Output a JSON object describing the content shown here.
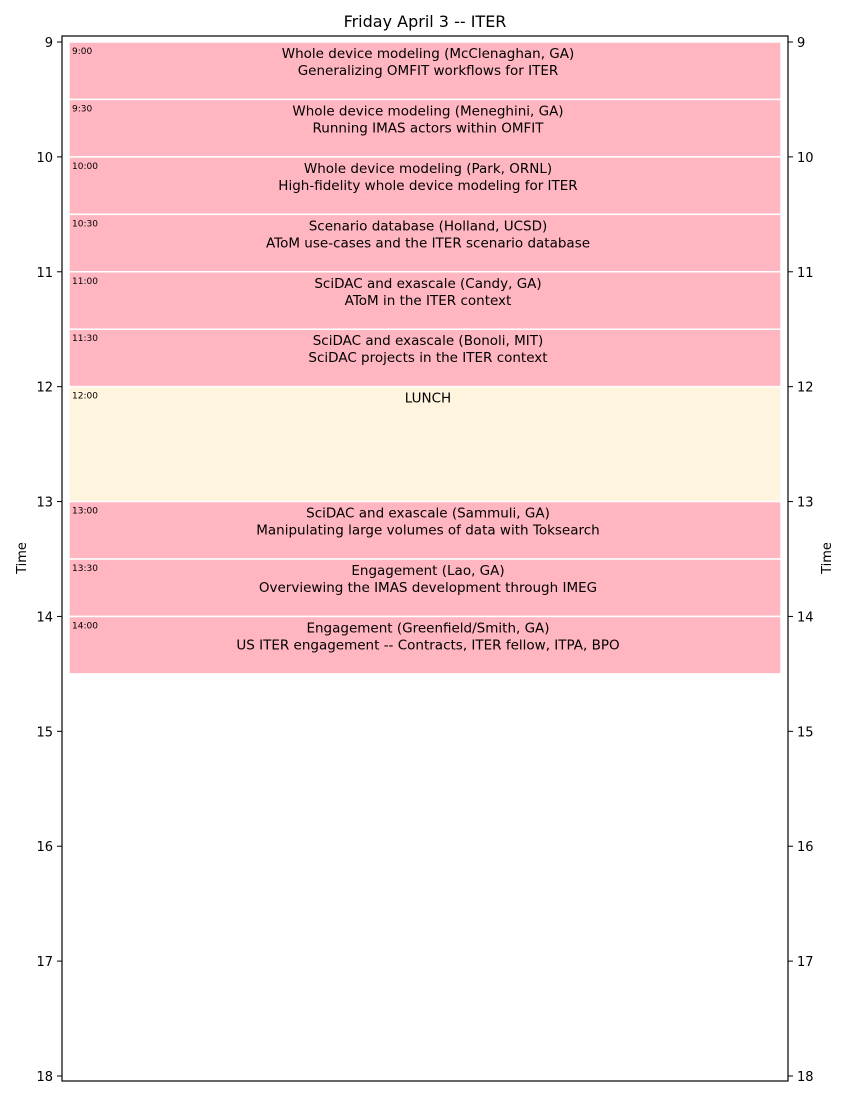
{
  "chart_data": {
    "type": "table",
    "title": "Friday April 3 -- ITER",
    "ylabel": "Time",
    "ylim": [
      9,
      18
    ],
    "yticks": [
      "9",
      "10",
      "11",
      "12",
      "13",
      "14",
      "15",
      "16",
      "17",
      "18"
    ],
    "colors": {
      "talk": "#ffb6c1",
      "break": "#fff5de",
      "frame": "#000000"
    },
    "events": [
      {
        "time_label": "9:00",
        "start": 9.0,
        "end": 9.5,
        "kind": "talk",
        "line1": "Whole device modeling (McClenaghan, GA)",
        "line2": "Generalizing OMFIT workflows for ITER"
      },
      {
        "time_label": "9:30",
        "start": 9.5,
        "end": 10.0,
        "kind": "talk",
        "line1": "Whole device modeling (Meneghini, GA)",
        "line2": "Running IMAS actors within OMFIT"
      },
      {
        "time_label": "10:00",
        "start": 10.0,
        "end": 10.5,
        "kind": "talk",
        "line1": "Whole device modeling (Park, ORNL)",
        "line2": "High-fidelity whole device modeling for ITER"
      },
      {
        "time_label": "10:30",
        "start": 10.5,
        "end": 11.0,
        "kind": "talk",
        "line1": "Scenario database (Holland, UCSD)",
        "line2": "AToM use-cases and the ITER scenario database"
      },
      {
        "time_label": "11:00",
        "start": 11.0,
        "end": 11.5,
        "kind": "talk",
        "line1": "SciDAC and exascale (Candy, GA)",
        "line2": "AToM in the ITER context"
      },
      {
        "time_label": "11:30",
        "start": 11.5,
        "end": 12.0,
        "kind": "talk",
        "line1": "SciDAC and exascale (Bonoli, MIT)",
        "line2": "SciDAC projects in the ITER context"
      },
      {
        "time_label": "12:00",
        "start": 12.0,
        "end": 13.0,
        "kind": "break",
        "line1": "LUNCH",
        "line2": ""
      },
      {
        "time_label": "13:00",
        "start": 13.0,
        "end": 13.5,
        "kind": "talk",
        "line1": "SciDAC and exascale (Sammuli, GA)",
        "line2": "Manipulating large volumes of data with Toksearch"
      },
      {
        "time_label": "13:30",
        "start": 13.5,
        "end": 14.0,
        "kind": "talk",
        "line1": "Engagement (Lao, GA)",
        "line2": "Overviewing the IMAS development through IMEG"
      },
      {
        "time_label": "14:00",
        "start": 14.0,
        "end": 14.5,
        "kind": "talk",
        "line1": "Engagement (Greenfield/Smith, GA)",
        "line2": "US ITER engagement -- Contracts, ITER fellow, ITPA, BPO"
      }
    ]
  }
}
